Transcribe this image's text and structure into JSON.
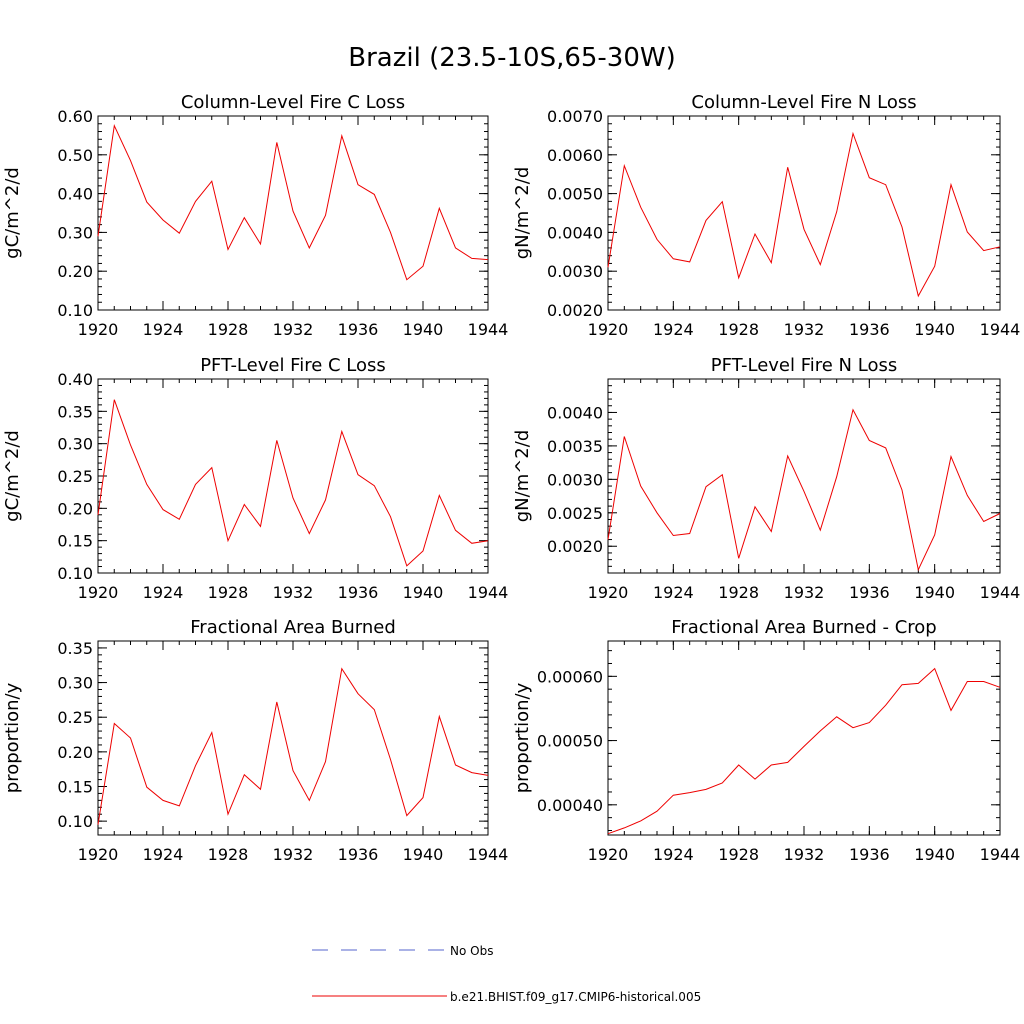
{
  "figure": {
    "title": "Brazil (23.5-10S,65-30W)",
    "legend": [
      {
        "label": "No Obs",
        "color": "#5566cc",
        "style": "dashed"
      },
      {
        "label": "b.e21.BHIST.f09_g17.CMIP6-historical.005",
        "color": "#ee0000",
        "style": "solid"
      }
    ]
  },
  "chart_data": [
    {
      "type": "line",
      "title": "Column-Level Fire C Loss",
      "ylabel": "gC/m^2/d",
      "xlim": [
        1920,
        1944
      ],
      "ylim": [
        0.1,
        0.6
      ],
      "xticks": [
        1920,
        1924,
        1928,
        1932,
        1936,
        1940,
        1944
      ],
      "xtick_labels": [
        "1920",
        "1924",
        "1928",
        "1932",
        "1936",
        "1940",
        "1944"
      ],
      "yticks": [
        0.1,
        0.2,
        0.3,
        0.4,
        0.5,
        0.6
      ],
      "ytick_labels": [
        "0.10",
        "0.20",
        "0.30",
        "0.40",
        "0.50",
        "0.60"
      ],
      "series": [
        {
          "name": "b.e21.BHIST.f09_g17.CMIP6-historical.005",
          "color": "#ee0000",
          "x": [
            1920,
            1921,
            1922,
            1923,
            1924,
            1925,
            1926,
            1927,
            1928,
            1929,
            1930,
            1931,
            1932,
            1933,
            1934,
            1935,
            1936,
            1937,
            1938,
            1939,
            1940,
            1941,
            1942,
            1943,
            1944
          ],
          "values": [
            0.29,
            0.575,
            0.485,
            0.378,
            0.332,
            0.298,
            0.38,
            0.432,
            0.256,
            0.338,
            0.27,
            0.532,
            0.355,
            0.26,
            0.344,
            0.549,
            0.423,
            0.398,
            0.3,
            0.178,
            0.213,
            0.362,
            0.26,
            0.233,
            0.23
          ]
        }
      ]
    },
    {
      "type": "line",
      "title": "Column-Level Fire N Loss",
      "ylabel": "gN/m^2/d",
      "xlim": [
        1920,
        1944
      ],
      "ylim": [
        0.002,
        0.007
      ],
      "xticks": [
        1920,
        1924,
        1928,
        1932,
        1936,
        1940,
        1944
      ],
      "xtick_labels": [
        "1920",
        "1924",
        "1928",
        "1932",
        "1936",
        "1940",
        "1944"
      ],
      "yticks": [
        0.002,
        0.003,
        0.004,
        0.005,
        0.006,
        0.007
      ],
      "ytick_labels": [
        "0.0020",
        "0.0030",
        "0.0040",
        "0.0050",
        "0.0060",
        "0.0070"
      ],
      "series": [
        {
          "name": "b.e21.BHIST.f09_g17.CMIP6-historical.005",
          "color": "#ee0000",
          "x": [
            1920,
            1921,
            1922,
            1923,
            1924,
            1925,
            1926,
            1927,
            1928,
            1929,
            1930,
            1931,
            1932,
            1933,
            1934,
            1935,
            1936,
            1937,
            1938,
            1939,
            1940,
            1941,
            1942,
            1943,
            1944
          ],
          "values": [
            0.0031,
            0.00572,
            0.00465,
            0.00382,
            0.00332,
            0.00324,
            0.00431,
            0.00479,
            0.00283,
            0.00396,
            0.00322,
            0.00568,
            0.00408,
            0.00317,
            0.00453,
            0.00655,
            0.00541,
            0.00523,
            0.00414,
            0.00236,
            0.00313,
            0.00523,
            0.00401,
            0.00353,
            0.00363
          ]
        }
      ]
    },
    {
      "type": "line",
      "title": "PFT-Level Fire C Loss",
      "ylabel": "gC/m^2/d",
      "xlim": [
        1920,
        1944
      ],
      "ylim": [
        0.1,
        0.4
      ],
      "xticks": [
        1920,
        1924,
        1928,
        1932,
        1936,
        1940,
        1944
      ],
      "xtick_labels": [
        "1920",
        "1924",
        "1928",
        "1932",
        "1936",
        "1940",
        "1944"
      ],
      "yticks": [
        0.1,
        0.15,
        0.2,
        0.25,
        0.3,
        0.35,
        0.4
      ],
      "ytick_labels": [
        "0.10",
        "0.15",
        "0.20",
        "0.25",
        "0.30",
        "0.35",
        "0.40"
      ],
      "series": [
        {
          "name": "b.e21.BHIST.f09_g17.CMIP6-historical.005",
          "color": "#ee0000",
          "x": [
            1920,
            1921,
            1922,
            1923,
            1924,
            1925,
            1926,
            1927,
            1928,
            1929,
            1930,
            1931,
            1932,
            1933,
            1934,
            1935,
            1936,
            1937,
            1938,
            1939,
            1940,
            1941,
            1942,
            1943,
            1944
          ],
          "values": [
            0.19,
            0.368,
            0.298,
            0.237,
            0.198,
            0.183,
            0.237,
            0.263,
            0.15,
            0.206,
            0.172,
            0.305,
            0.216,
            0.161,
            0.213,
            0.319,
            0.252,
            0.235,
            0.187,
            0.111,
            0.134,
            0.22,
            0.166,
            0.146,
            0.15
          ]
        }
      ]
    },
    {
      "type": "line",
      "title": "PFT-Level Fire N Loss",
      "ylabel": "gN/m^2/d",
      "xlim": [
        1920,
        1944
      ],
      "ylim": [
        0.0016,
        0.0045
      ],
      "xticks": [
        1920,
        1924,
        1928,
        1932,
        1936,
        1940,
        1944
      ],
      "xtick_labels": [
        "1920",
        "1924",
        "1928",
        "1932",
        "1936",
        "1940",
        "1944"
      ],
      "yticks": [
        0.002,
        0.0025,
        0.003,
        0.0035,
        0.004
      ],
      "ytick_labels": [
        "0.0020",
        "0.0025",
        "0.0030",
        "0.0035",
        "0.0040"
      ],
      "series": [
        {
          "name": "b.e21.BHIST.f09_g17.CMIP6-historical.005",
          "color": "#ee0000",
          "x": [
            1920,
            1921,
            1922,
            1923,
            1924,
            1925,
            1926,
            1927,
            1928,
            1929,
            1930,
            1931,
            1932,
            1933,
            1934,
            1935,
            1936,
            1937,
            1938,
            1939,
            1940,
            1941,
            1942,
            1943,
            1944
          ],
          "values": [
            0.0021,
            0.00364,
            0.0029,
            0.0025,
            0.00216,
            0.00219,
            0.00289,
            0.00307,
            0.00182,
            0.00259,
            0.00222,
            0.00335,
            0.00282,
            0.00224,
            0.00304,
            0.00404,
            0.00358,
            0.00347,
            0.00284,
            0.00165,
            0.00217,
            0.00334,
            0.00276,
            0.00237,
            0.00249
          ]
        }
      ]
    },
    {
      "type": "line",
      "title": "Fractional Area Burned",
      "ylabel": "proportion/y",
      "xlim": [
        1920,
        1944
      ],
      "ylim": [
        0.08,
        0.36
      ],
      "xticks": [
        1920,
        1924,
        1928,
        1932,
        1936,
        1940,
        1944
      ],
      "xtick_labels": [
        "1920",
        "1924",
        "1928",
        "1932",
        "1936",
        "1940",
        "1944"
      ],
      "yticks": [
        0.1,
        0.15,
        0.2,
        0.25,
        0.3,
        0.35
      ],
      "ytick_labels": [
        "0.10",
        "0.15",
        "0.20",
        "0.25",
        "0.30",
        "0.35"
      ],
      "series": [
        {
          "name": "b.e21.BHIST.f09_g17.CMIP6-historical.005",
          "color": "#ee0000",
          "x": [
            1920,
            1921,
            1922,
            1923,
            1924,
            1925,
            1926,
            1927,
            1928,
            1929,
            1930,
            1931,
            1932,
            1933,
            1934,
            1935,
            1936,
            1937,
            1938,
            1939,
            1940,
            1941,
            1942,
            1943,
            1944
          ],
          "values": [
            0.095,
            0.241,
            0.22,
            0.149,
            0.13,
            0.122,
            0.18,
            0.228,
            0.11,
            0.167,
            0.146,
            0.272,
            0.173,
            0.13,
            0.186,
            0.32,
            0.284,
            0.261,
            0.189,
            0.108,
            0.134,
            0.251,
            0.181,
            0.17,
            0.166
          ]
        }
      ]
    },
    {
      "type": "line",
      "title": "Fractional Area Burned - Crop",
      "ylabel": "proportion/y",
      "xlim": [
        1920,
        1944
      ],
      "ylim": [
        0.000353,
        0.000655
      ],
      "xticks": [
        1920,
        1924,
        1928,
        1932,
        1936,
        1940,
        1944
      ],
      "xtick_labels": [
        "1920",
        "1924",
        "1928",
        "1932",
        "1936",
        "1940",
        "1944"
      ],
      "yticks": [
        0.0004,
        0.0005,
        0.0006
      ],
      "ytick_labels": [
        "0.00040",
        "0.00050",
        "0.00060"
      ],
      "series": [
        {
          "name": "b.e21.BHIST.f09_g17.CMIP6-historical.005",
          "color": "#ee0000",
          "x": [
            1920,
            1921,
            1922,
            1923,
            1924,
            1925,
            1926,
            1927,
            1928,
            1929,
            1930,
            1931,
            1932,
            1933,
            1934,
            1935,
            1936,
            1937,
            1938,
            1939,
            1940,
            1941,
            1942,
            1943,
            1944
          ],
          "values": [
            0.000355,
            0.000364,
            0.000375,
            0.00039,
            0.000415,
            0.000419,
            0.000424,
            0.000434,
            0.000462,
            0.00044,
            0.000462,
            0.000466,
            0.000491,
            0.000515,
            0.000537,
            0.00052,
            0.000528,
            0.000555,
            0.000587,
            0.000589,
            0.000612,
            0.000547,
            0.000592,
            0.000592,
            0.000583
          ]
        }
      ]
    }
  ]
}
